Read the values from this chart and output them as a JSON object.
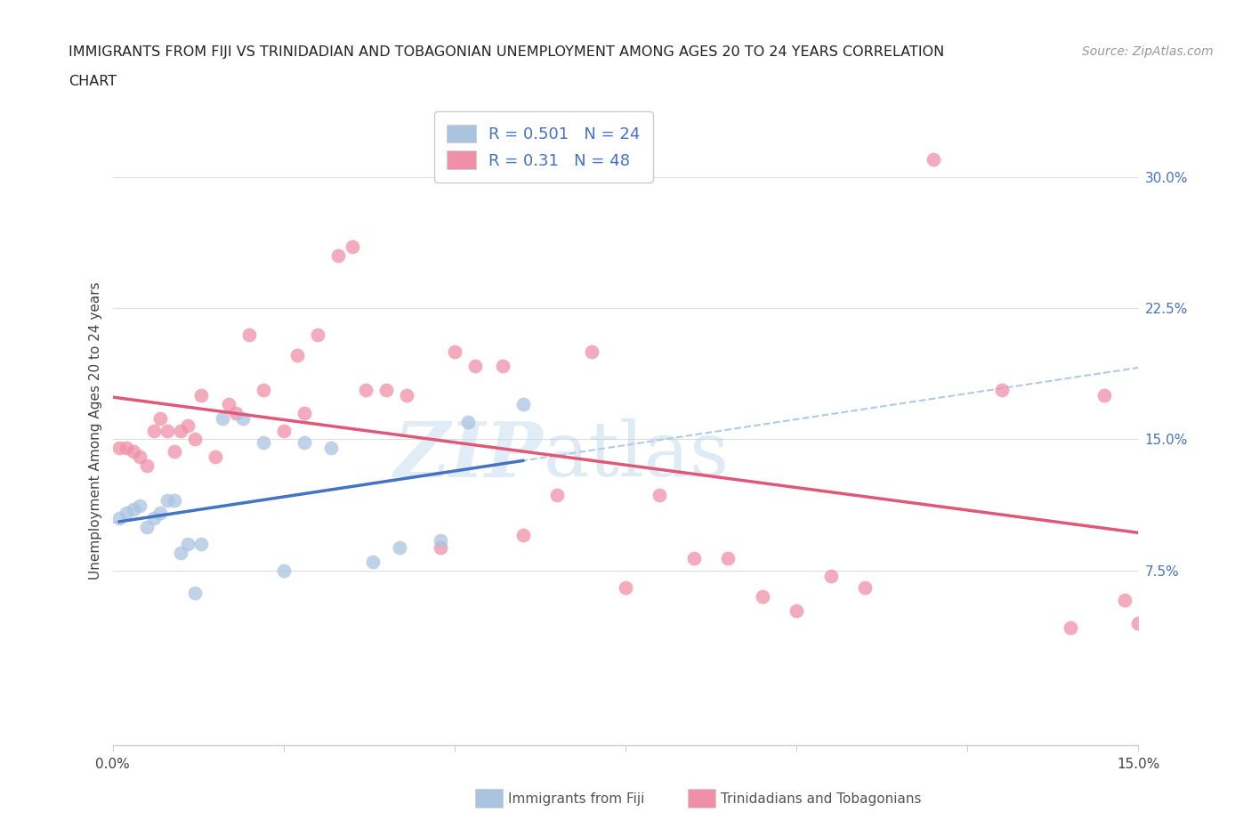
{
  "title_line1": "IMMIGRANTS FROM FIJI VS TRINIDADIAN AND TOBAGONIAN UNEMPLOYMENT AMONG AGES 20 TO 24 YEARS CORRELATION",
  "title_line2": "CHART",
  "source": "Source: ZipAtlas.com",
  "ylabel": "Unemployment Among Ages 20 to 24 years",
  "xlim": [
    0.0,
    0.15
  ],
  "ylim": [
    -0.025,
    0.335
  ],
  "ytick_positions_right": [
    0.075,
    0.15,
    0.225,
    0.3
  ],
  "ytick_labels_right": [
    "7.5%",
    "15.0%",
    "22.5%",
    "30.0%"
  ],
  "fiji_scatter_color": "#aac4e0",
  "trinidad_scatter_color": "#f090a8",
  "fiji_line_color": "#4472c4",
  "trinidad_line_color": "#e05878",
  "dashed_line_color": "#aac4e0",
  "fiji_R": 0.501,
  "fiji_N": 24,
  "trinidad_R": 0.31,
  "trinidad_N": 48,
  "fiji_label": "Immigrants from Fiji",
  "trinidad_label": "Trinidadians and Tobagonians",
  "watermark_zip": "ZIP",
  "watermark_atlas": "atlas",
  "grid_color": "#dddddd",
  "background_color": "#ffffff",
  "fiji_x": [
    0.001,
    0.002,
    0.003,
    0.004,
    0.005,
    0.006,
    0.007,
    0.008,
    0.009,
    0.01,
    0.011,
    0.012,
    0.013,
    0.016,
    0.019,
    0.022,
    0.025,
    0.028,
    0.032,
    0.038,
    0.042,
    0.048,
    0.052,
    0.06
  ],
  "fiji_y": [
    0.105,
    0.108,
    0.11,
    0.112,
    0.1,
    0.105,
    0.108,
    0.115,
    0.115,
    0.085,
    0.09,
    0.062,
    0.09,
    0.162,
    0.162,
    0.148,
    0.075,
    0.148,
    0.145,
    0.08,
    0.088,
    0.092,
    0.16,
    0.17
  ],
  "trinidad_x": [
    0.001,
    0.002,
    0.003,
    0.004,
    0.005,
    0.006,
    0.007,
    0.008,
    0.009,
    0.01,
    0.011,
    0.012,
    0.013,
    0.015,
    0.017,
    0.018,
    0.02,
    0.022,
    0.025,
    0.027,
    0.028,
    0.03,
    0.033,
    0.035,
    0.037,
    0.04,
    0.043,
    0.048,
    0.05,
    0.053,
    0.057,
    0.06,
    0.065,
    0.07,
    0.075,
    0.08,
    0.085,
    0.09,
    0.095,
    0.1,
    0.105,
    0.11,
    0.12,
    0.13,
    0.14,
    0.145,
    0.148,
    0.15
  ],
  "trinidad_y": [
    0.145,
    0.145,
    0.143,
    0.14,
    0.135,
    0.155,
    0.162,
    0.155,
    0.143,
    0.155,
    0.158,
    0.15,
    0.175,
    0.14,
    0.17,
    0.165,
    0.21,
    0.178,
    0.155,
    0.198,
    0.165,
    0.21,
    0.255,
    0.26,
    0.178,
    0.178,
    0.175,
    0.088,
    0.2,
    0.192,
    0.192,
    0.095,
    0.118,
    0.2,
    0.065,
    0.118,
    0.082,
    0.082,
    0.06,
    0.052,
    0.072,
    0.065,
    0.31,
    0.178,
    0.042,
    0.175,
    0.058,
    0.045
  ]
}
